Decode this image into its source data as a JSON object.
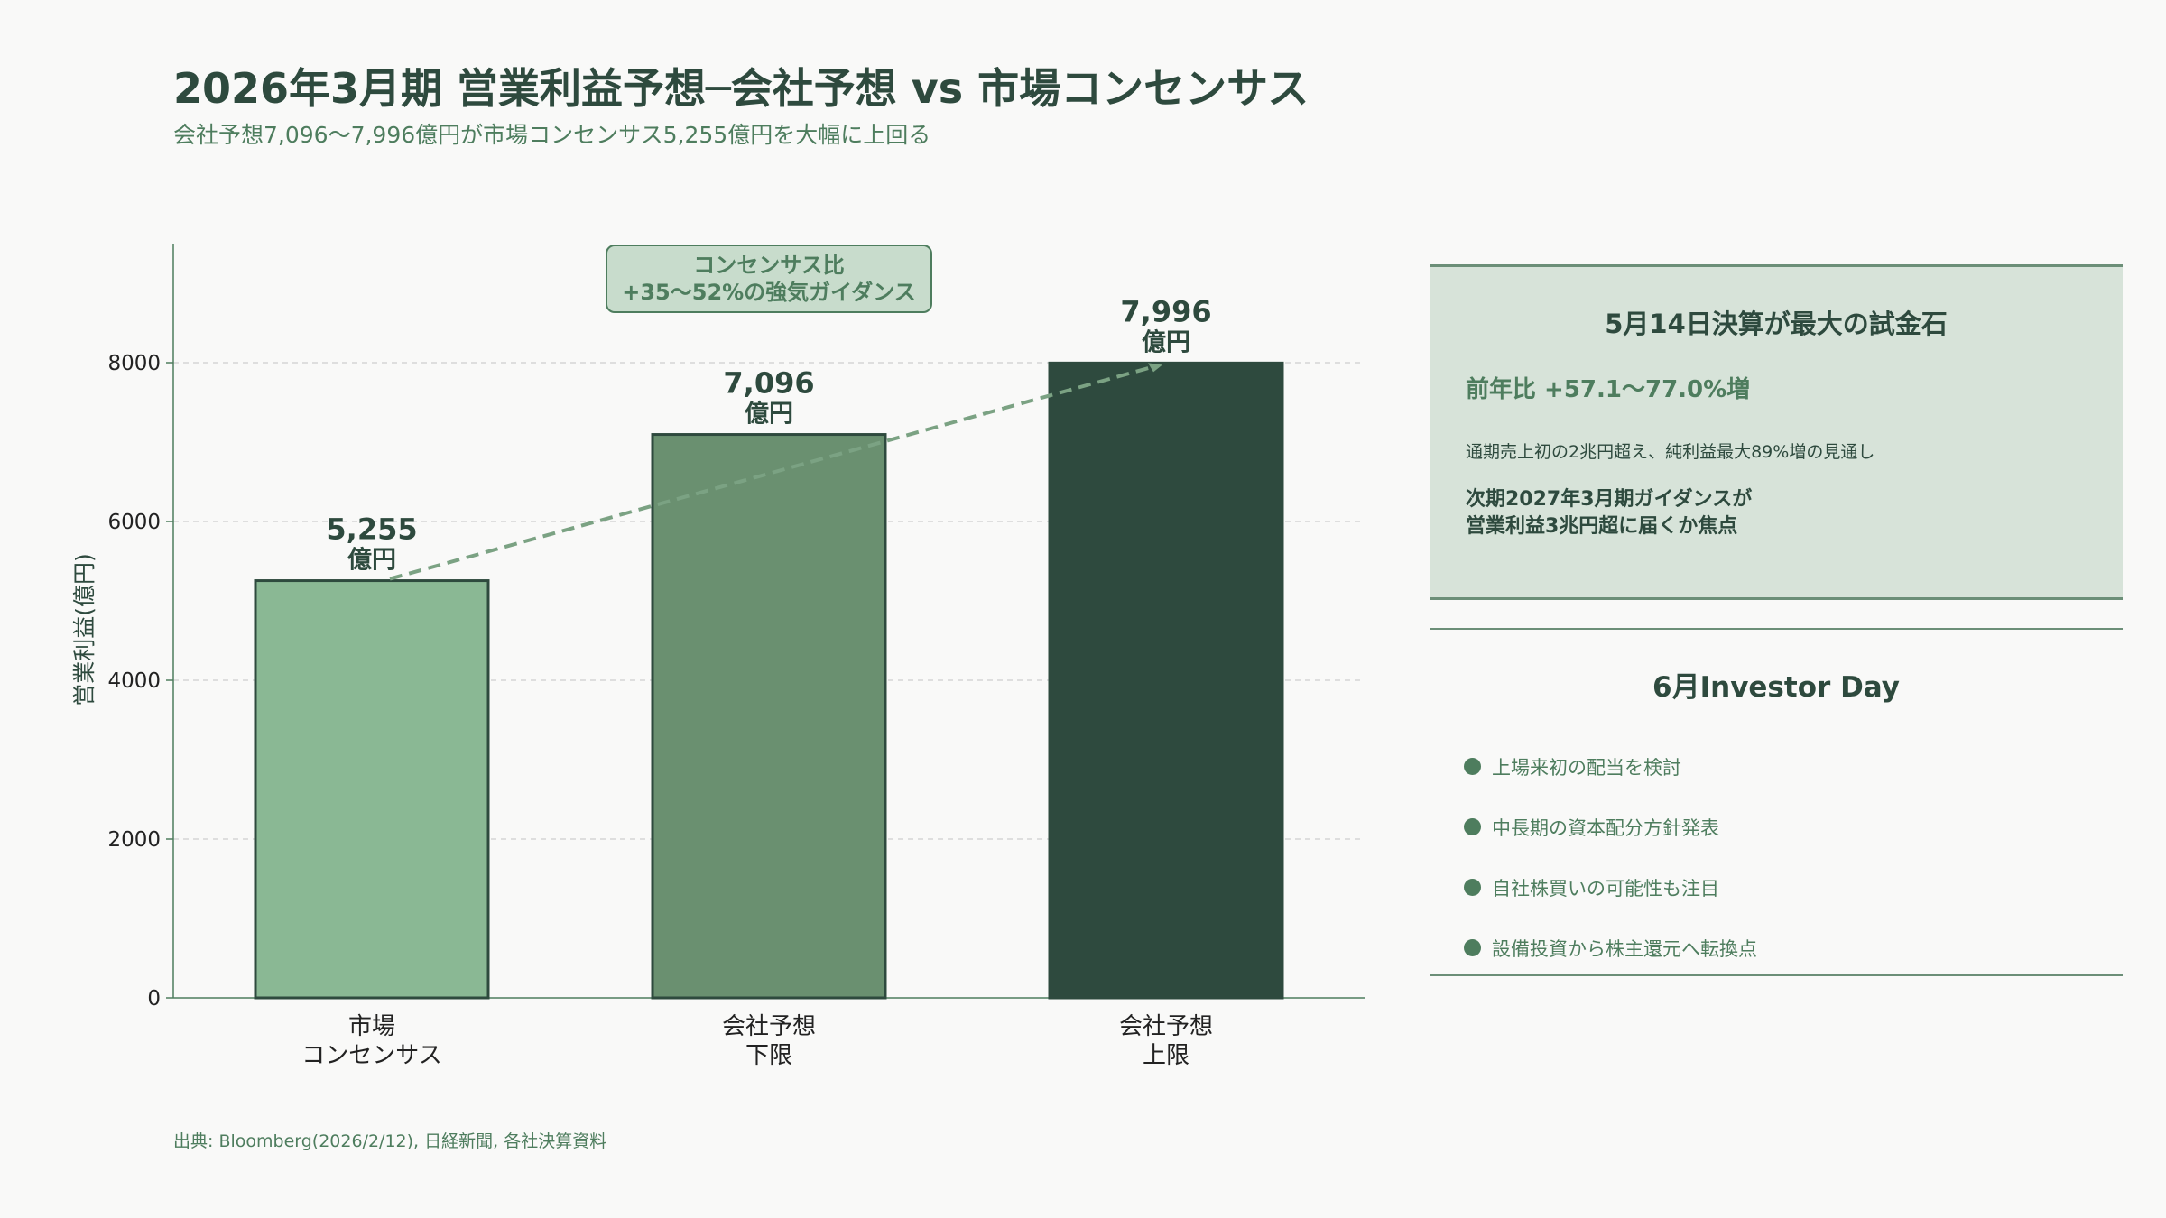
{
  "title": "2026年3月期 営業利益予想─会社予想 vs 市場コンセンサス",
  "subtitle": "会社予想7,096〜7,996億円が市場コンセンサス5,255億円を大幅に上回る",
  "chart_data": {
    "type": "bar",
    "categories": [
      [
        "市場",
        "コンセンサス"
      ],
      [
        "会社予想",
        "下限"
      ],
      [
        "会社予想",
        "上限"
      ]
    ],
    "values": [
      5255,
      7096,
      7996
    ],
    "value_labels": [
      [
        "5,255",
        "億円"
      ],
      [
        "7,096",
        "億円"
      ],
      [
        "7,996",
        "億円"
      ]
    ],
    "bar_colors": [
      "#8ab894",
      "#6a9070",
      "#2e4a3e"
    ],
    "ylabel": "営業利益(億円)",
    "ylim": [
      0,
      9500
    ],
    "yticks": [
      0,
      2000,
      4000,
      6000,
      8000
    ],
    "grid": true,
    "trend_line": true,
    "annotation": [
      "コンセンサス比",
      "+35〜52%の強気ガイダンス"
    ]
  },
  "panel_top": {
    "title": "5月14日決算が最大の試金石",
    "growth": "前年比 +57.1〜77.0%増",
    "note": "通期売上初の2兆円超え、純利益最大89%増の見通し",
    "focus": [
      "次期2027年3月期ガイダンスが",
      "営業利益3兆円超に届くか焦点"
    ]
  },
  "panel_bottom": {
    "title": "6月Investor Day",
    "items": [
      "上場来初の配当を検討",
      "中長期の資本配分方針発表",
      "自社株買いの可能性も注目",
      "設備投資から株主還元へ転換点"
    ]
  },
  "source": "出典: Bloomberg(2026/2/12), 日経新聞, 各社決算資料",
  "colors": {
    "dark": "#2e4a3e",
    "accent": "#4e7d5e",
    "panel_bg": "#d7e3d9",
    "annotation_bg": "#c8dccc"
  }
}
